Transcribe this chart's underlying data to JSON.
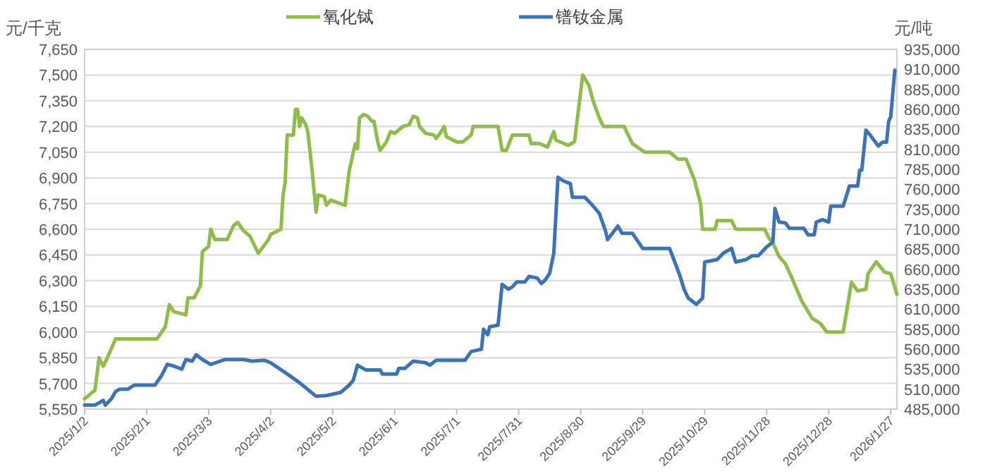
{
  "chart_data": {
    "type": "line",
    "ylabel": "元/千克",
    "y2label": "元/吨",
    "grid": "y",
    "legend": "top",
    "xlim": [
      "2025-01-02",
      "2026-01-30"
    ],
    "xticks": [
      {
        "value": "2025-01-02",
        "label": "2025/1/2"
      },
      {
        "value": "2025-02-01",
        "label": "2025/2/1"
      },
      {
        "value": "2025-03-03",
        "label": "2025/3/3"
      },
      {
        "value": "2025-04-02",
        "label": "2025/4/2"
      },
      {
        "value": "2025-05-02",
        "label": "2025/5/2"
      },
      {
        "value": "2025-06-01",
        "label": "2025/6/1"
      },
      {
        "value": "2025-07-01",
        "label": "2025/7/1"
      },
      {
        "value": "2025-07-31",
        "label": "2025/7/31"
      },
      {
        "value": "2025-08-30",
        "label": "2025/8/30"
      },
      {
        "value": "2025-09-29",
        "label": "2025/9/29"
      },
      {
        "value": "2025-10-29",
        "label": "2025/10/29"
      },
      {
        "value": "2025-11-28",
        "label": "2025/11/28"
      },
      {
        "value": "2025-12-28",
        "label": "2025/12/28"
      },
      {
        "value": "2026-01-27",
        "label": "2026/1/27"
      }
    ],
    "ylim": [
      5550,
      7650
    ],
    "yticks": [
      {
        "value": 5550,
        "label": "5,550"
      },
      {
        "value": 5700,
        "label": "5,700"
      },
      {
        "value": 5850,
        "label": "5,850"
      },
      {
        "value": 6000,
        "label": "6,000"
      },
      {
        "value": 6150,
        "label": "6,150"
      },
      {
        "value": 6300,
        "label": "6,300"
      },
      {
        "value": 6450,
        "label": "6,450"
      },
      {
        "value": 6600,
        "label": "6,600"
      },
      {
        "value": 6750,
        "label": "6,750"
      },
      {
        "value": 6900,
        "label": "6,900"
      },
      {
        "value": 7050,
        "label": "7,050"
      },
      {
        "value": 7200,
        "label": "7,200"
      },
      {
        "value": 7350,
        "label": "7,350"
      },
      {
        "value": 7500,
        "label": "7,500"
      },
      {
        "value": 7650,
        "label": "7,650"
      }
    ],
    "y2lim": [
      485000,
      935000
    ],
    "y2ticks": [
      {
        "value": 485000,
        "label": "485,000"
      },
      {
        "value": 510000,
        "label": "510,000"
      },
      {
        "value": 535000,
        "label": "535,000"
      },
      {
        "value": 560000,
        "label": "560,000"
      },
      {
        "value": 585000,
        "label": "585,000"
      },
      {
        "value": 610000,
        "label": "610,000"
      },
      {
        "value": 635000,
        "label": "635,000"
      },
      {
        "value": 660000,
        "label": "660,000"
      },
      {
        "value": 685000,
        "label": "685,000"
      },
      {
        "value": 710000,
        "label": "710,000"
      },
      {
        "value": 735000,
        "label": "735,000"
      },
      {
        "value": 760000,
        "label": "760,000"
      },
      {
        "value": 785000,
        "label": "785,000"
      },
      {
        "value": 810000,
        "label": "810,000"
      },
      {
        "value": 835000,
        "label": "835,000"
      },
      {
        "value": 860000,
        "label": "860,000"
      },
      {
        "value": 885000,
        "label": "885,000"
      },
      {
        "value": 910000,
        "label": "910,000"
      },
      {
        "value": 935000,
        "label": "935,000"
      }
    ],
    "series": [
      {
        "name": "氧化铽",
        "color": "#8fbc4a",
        "x": [
          "2025-01-02",
          "2025-01-07",
          "2025-01-09",
          "2025-01-11",
          "2025-01-13",
          "2025-01-17",
          "2025-02-06",
          "2025-02-10",
          "2025-02-12",
          "2025-02-14",
          "2025-02-20",
          "2025-02-21",
          "2025-02-24",
          "2025-02-27",
          "2025-02-28",
          "2025-03-03",
          "2025-03-04",
          "2025-03-06",
          "2025-03-12",
          "2025-03-15",
          "2025-03-17",
          "2025-03-20",
          "2025-03-23",
          "2025-03-27",
          "2025-04-01",
          "2025-04-02",
          "2025-04-07",
          "2025-04-08",
          "2025-04-09",
          "2025-04-10",
          "2025-04-13",
          "2025-04-14",
          "2025-04-15",
          "2025-04-16",
          "2025-04-17",
          "2025-04-19",
          "2025-04-20",
          "2025-04-22",
          "2025-04-24",
          "2025-04-25",
          "2025-04-28",
          "2025-04-29",
          "2025-05-01",
          "2025-05-08",
          "2025-05-10",
          "2025-05-12",
          "2025-05-13",
          "2025-05-14",
          "2025-05-15",
          "2025-05-17",
          "2025-05-19",
          "2025-05-21",
          "2025-05-22",
          "2025-05-24",
          "2025-05-25",
          "2025-05-28",
          "2025-05-30",
          "2025-06-01",
          "2025-06-05",
          "2025-06-08",
          "2025-06-10",
          "2025-06-12",
          "2025-06-13",
          "2025-06-16",
          "2025-06-20",
          "2025-06-21",
          "2025-06-23",
          "2025-06-25",
          "2025-06-26",
          "2025-07-01",
          "2025-07-04",
          "2025-07-08",
          "2025-07-09",
          "2025-07-21",
          "2025-07-23",
          "2025-07-25",
          "2025-07-28",
          "2025-08-05",
          "2025-08-06",
          "2025-08-10",
          "2025-08-14",
          "2025-08-17",
          "2025-08-18",
          "2025-08-24",
          "2025-08-27",
          "2025-08-31",
          "2025-09-03",
          "2025-09-05",
          "2025-09-08",
          "2025-09-10",
          "2025-09-20",
          "2025-09-24",
          "2025-09-30",
          "2025-10-12",
          "2025-10-16",
          "2025-10-20",
          "2025-10-24",
          "2025-10-27",
          "2025-10-28",
          "2025-11-03",
          "2025-11-04",
          "2025-11-11",
          "2025-11-13",
          "2025-11-27",
          "2025-11-29",
          "2025-12-01",
          "2025-12-04",
          "2025-12-07",
          "2025-12-10",
          "2025-12-15",
          "2025-12-20",
          "2025-12-24",
          "2025-12-27",
          "2026-01-04",
          "2026-01-08",
          "2026-01-11",
          "2026-01-15",
          "2026-01-16",
          "2026-01-20",
          "2026-01-24",
          "2026-01-27",
          "2026-01-30"
        ],
        "values": [
          5610,
          5660,
          5850,
          5800,
          5850,
          5960,
          5960,
          6030,
          6160,
          6120,
          6100,
          6200,
          6200,
          6270,
          6470,
          6500,
          6600,
          6540,
          6540,
          6620,
          6640,
          6590,
          6560,
          6460,
          6540,
          6570,
          6600,
          6800,
          6870,
          7150,
          7150,
          7300,
          7300,
          7200,
          7250,
          7210,
          7170,
          6950,
          6700,
          6800,
          6790,
          6740,
          6770,
          6740,
          6940,
          7050,
          7100,
          7070,
          7250,
          7270,
          7260,
          7230,
          7230,
          7100,
          7060,
          7110,
          7170,
          7160,
          7200,
          7210,
          7260,
          7250,
          7200,
          7160,
          7150,
          7130,
          7160,
          7200,
          7140,
          7110,
          7110,
          7150,
          7200,
          7200,
          7060,
          7060,
          7150,
          7150,
          7100,
          7100,
          7080,
          7170,
          7120,
          7090,
          7110,
          7500,
          7440,
          7350,
          7250,
          7200,
          7200,
          7100,
          7050,
          7050,
          7010,
          7010,
          6890,
          6750,
          6600,
          6600,
          6650,
          6650,
          6600,
          6600,
          6550,
          6520,
          6440,
          6400,
          6320,
          6180,
          6080,
          6050,
          6000,
          6000,
          6290,
          6240,
          6250,
          6340,
          6410,
          6350,
          6340,
          6220
        ]
      },
      {
        "name": "镨钕金属",
        "color": "#3b72b8",
        "axis": "y2",
        "x": [
          "2025-01-02",
          "2025-01-07",
          "2025-01-11",
          "2025-01-12",
          "2025-01-15",
          "2025-01-17",
          "2025-01-19",
          "2025-01-23",
          "2025-01-26",
          "2025-02-05",
          "2025-02-08",
          "2025-02-11",
          "2025-02-14",
          "2025-02-18",
          "2025-02-20",
          "2025-02-23",
          "2025-02-25",
          "2025-02-28",
          "2025-03-04",
          "2025-03-11",
          "2025-03-20",
          "2025-03-24",
          "2025-03-30",
          "2025-04-02",
          "2025-04-10",
          "2025-04-16",
          "2025-04-24",
          "2025-04-29",
          "2025-05-06",
          "2025-05-10",
          "2025-05-12",
          "2025-05-14",
          "2025-05-18",
          "2025-05-25",
          "2025-05-26",
          "2025-06-02",
          "2025-06-03",
          "2025-06-06",
          "2025-06-10",
          "2025-06-16",
          "2025-06-18",
          "2025-06-21",
          "2025-07-05",
          "2025-07-08",
          "2025-07-13",
          "2025-07-14",
          "2025-07-16",
          "2025-07-17",
          "2025-07-21",
          "2025-07-23",
          "2025-07-26",
          "2025-07-28",
          "2025-07-30",
          "2025-08-03",
          "2025-08-05",
          "2025-08-09",
          "2025-08-11",
          "2025-08-13",
          "2025-08-15",
          "2025-08-17",
          "2025-08-19",
          "2025-08-22",
          "2025-08-25",
          "2025-08-26",
          "2025-09-01",
          "2025-09-04",
          "2025-09-08",
          "2025-09-11",
          "2025-09-12",
          "2025-09-17",
          "2025-09-19",
          "2025-09-24",
          "2025-09-29",
          "2025-10-12",
          "2025-10-17",
          "2025-10-19",
          "2025-10-21",
          "2025-10-25",
          "2025-10-28",
          "2025-10-29",
          "2025-11-04",
          "2025-11-07",
          "2025-11-11",
          "2025-11-13",
          "2025-11-18",
          "2025-11-21",
          "2025-11-24",
          "2025-11-28",
          "2025-12-01",
          "2025-12-02",
          "2025-12-04",
          "2025-12-07",
          "2025-12-09",
          "2025-12-16",
          "2025-12-18",
          "2025-12-21",
          "2025-12-22",
          "2025-12-25",
          "2025-12-28",
          "2025-12-29",
          "2026-01-04",
          "2026-01-05",
          "2026-01-07",
          "2026-01-11",
          "2026-01-12",
          "2026-01-13",
          "2026-01-15",
          "2026-01-17",
          "2026-01-21",
          "2026-01-23",
          "2026-01-25",
          "2026-01-26",
          "2026-01-27",
          "2026-01-29"
        ],
        "values": [
          490000,
          490000,
          496000,
          490000,
          498000,
          507000,
          510000,
          510000,
          515000,
          515000,
          526000,
          541000,
          539000,
          535000,
          547000,
          545000,
          553000,
          547000,
          541000,
          547000,
          547000,
          545000,
          546000,
          543000,
          529000,
          518000,
          501000,
          502000,
          506000,
          515000,
          521000,
          540000,
          534000,
          534000,
          529000,
          529000,
          536000,
          536000,
          545000,
          543000,
          540000,
          546000,
          546000,
          557000,
          560000,
          585000,
          578000,
          588000,
          590000,
          641000,
          635000,
          638000,
          644000,
          644000,
          651000,
          649000,
          642000,
          647000,
          655000,
          680000,
          775000,
          770000,
          767000,
          750000,
          750000,
          742000,
          730000,
          708000,
          697000,
          714000,
          705000,
          705000,
          686000,
          686000,
          652000,
          635000,
          624000,
          616000,
          624000,
          669000,
          672000,
          680000,
          686000,
          669000,
          672000,
          677000,
          677000,
          688000,
          694000,
          736000,
          719000,
          718000,
          711000,
          711000,
          703000,
          703000,
          719000,
          722000,
          719000,
          739000,
          739000,
          747000,
          764000,
          764000,
          784000,
          784000,
          834000,
          828000,
          814000,
          819000,
          819000,
          845000,
          851000,
          909000
        ]
      }
    ]
  }
}
